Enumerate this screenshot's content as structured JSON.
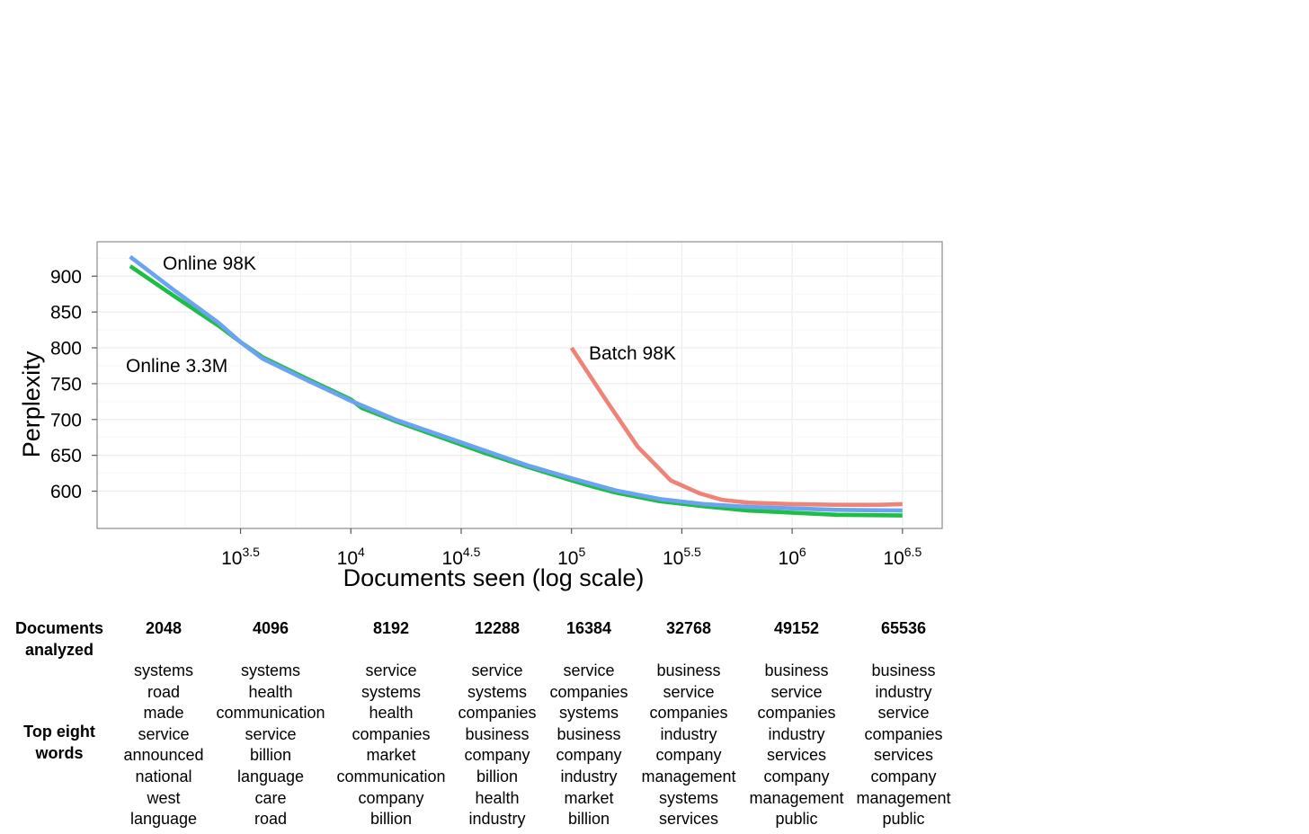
{
  "chart_data": {
    "type": "line",
    "xlabel": "Documents seen (log scale)",
    "ylabel": "Perplexity",
    "x_scale": "log10",
    "x_ticks": [
      {
        "value": 3.5,
        "base": "10",
        "exp": "3.5"
      },
      {
        "value": 4.0,
        "base": "10",
        "exp": "4"
      },
      {
        "value": 4.5,
        "base": "10",
        "exp": "4.5"
      },
      {
        "value": 5.0,
        "base": "10",
        "exp": "5"
      },
      {
        "value": 5.5,
        "base": "10",
        "exp": "5.5"
      },
      {
        "value": 6.0,
        "base": "10",
        "exp": "6"
      },
      {
        "value": 6.5,
        "base": "10",
        "exp": "6.5"
      }
    ],
    "y_ticks": [
      600,
      650,
      700,
      750,
      800,
      850,
      900
    ],
    "xlim": [
      2.85,
      6.68
    ],
    "ylim": [
      548,
      948
    ],
    "grid": true,
    "series": [
      {
        "name": "Online 98K",
        "color": "#6aa3f0",
        "x": [
          3.0,
          3.2,
          3.4,
          3.5,
          3.6,
          3.8,
          4.0,
          4.2,
          4.5,
          4.8,
          5.0,
          5.2,
          5.4,
          5.6,
          5.8,
          6.0,
          6.2,
          6.5
        ],
        "y": [
          927,
          880,
          835,
          808,
          785,
          755,
          726,
          700,
          668,
          636,
          618,
          601,
          589,
          582,
          578,
          576,
          574,
          573
        ]
      },
      {
        "name": "Online 3.3M",
        "color": "#1dbe45",
        "x": [
          3.0,
          3.2,
          3.4,
          3.5,
          3.6,
          3.8,
          4.0,
          4.05,
          4.2,
          4.4,
          4.6,
          4.8,
          5.0,
          5.1,
          5.2,
          5.4,
          5.6,
          5.8,
          6.0,
          6.2,
          6.5
        ],
        "y": [
          914,
          872,
          831,
          808,
          787,
          757,
          728,
          716,
          698,
          676,
          654,
          634,
          615,
          606,
          598,
          586,
          579,
          573,
          570,
          567,
          566
        ]
      },
      {
        "name": "Batch 98K",
        "color": "#f08378",
        "x": [
          5.0,
          5.15,
          5.3,
          5.45,
          5.58,
          5.68,
          5.8,
          6.0,
          6.2,
          6.4,
          6.5
        ],
        "y": [
          800,
          730,
          662,
          615,
          597,
          588,
          584,
          582,
          581,
          581,
          582
        ]
      }
    ]
  },
  "table": {
    "docs_header": "Documents\nanalyzed",
    "words_header": "Top eight\nwords",
    "columns": [
      {
        "docs": "2048",
        "words": [
          "systems",
          "road",
          "made",
          "service",
          "announced",
          "national",
          "west",
          "language"
        ]
      },
      {
        "docs": "4096",
        "words": [
          "systems",
          "health",
          "communication",
          "service",
          "billion",
          "language",
          "care",
          "road"
        ]
      },
      {
        "docs": "8192",
        "words": [
          "service",
          "systems",
          "health",
          "companies",
          "market",
          "communication",
          "company",
          "billion"
        ]
      },
      {
        "docs": "12288",
        "words": [
          "service",
          "systems",
          "companies",
          "business",
          "company",
          "billion",
          "health",
          "industry"
        ]
      },
      {
        "docs": "16384",
        "words": [
          "service",
          "companies",
          "systems",
          "business",
          "company",
          "industry",
          "market",
          "billion"
        ]
      },
      {
        "docs": "32768",
        "words": [
          "business",
          "service",
          "companies",
          "industry",
          "company",
          "management",
          "systems",
          "services"
        ]
      },
      {
        "docs": "49152",
        "words": [
          "business",
          "service",
          "companies",
          "industry",
          "services",
          "company",
          "management",
          "public"
        ]
      },
      {
        "docs": "65536",
        "words": [
          "business",
          "industry",
          "service",
          "companies",
          "services",
          "company",
          "management",
          "public"
        ]
      }
    ]
  }
}
